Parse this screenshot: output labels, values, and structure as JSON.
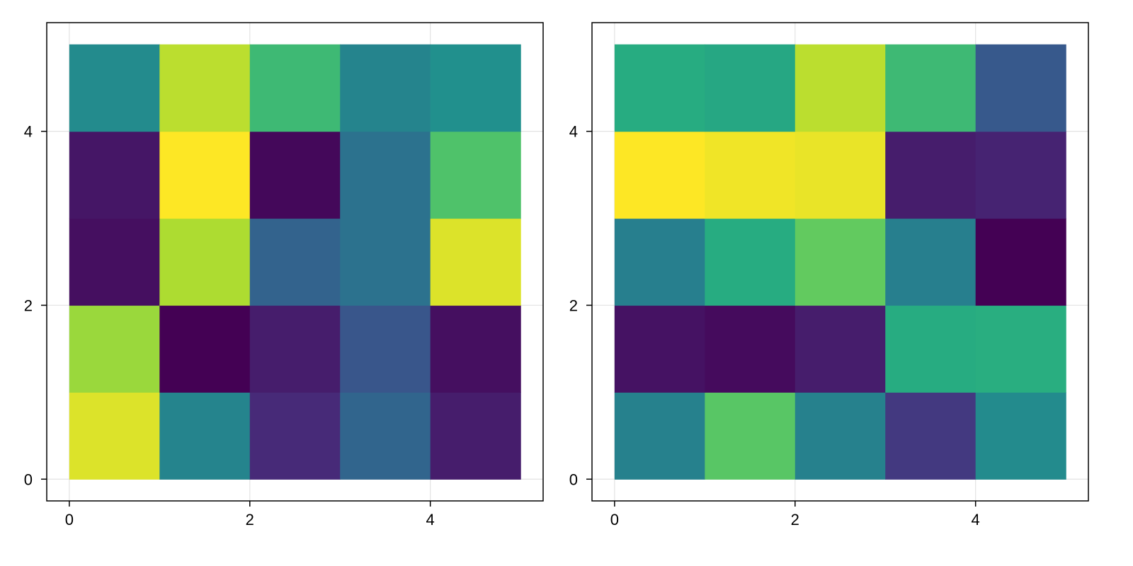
{
  "chart_data": [
    {
      "type": "heatmap",
      "title": "",
      "xlabel": "",
      "ylabel": "",
      "colormap": "viridis",
      "grid": true,
      "xlim": [
        -0.25,
        5.25
      ],
      "ylim": [
        -0.25,
        5.25
      ],
      "xticks": [
        0,
        2,
        4
      ],
      "yticks": [
        0,
        2,
        4
      ],
      "x_edges": [
        0,
        1,
        2,
        3,
        4,
        5
      ],
      "y_edges": [
        0,
        1,
        2,
        3,
        4,
        5
      ],
      "values": [
        [
          0.95,
          0.45,
          0.12,
          0.33,
          0.08
        ],
        [
          0.85,
          0.0,
          0.08,
          0.27,
          0.04
        ],
        [
          0.04,
          0.88,
          0.32,
          0.38,
          0.95
        ],
        [
          0.06,
          1.0,
          0.02,
          0.38,
          0.72
        ],
        [
          0.48,
          0.9,
          0.68,
          0.45,
          0.5
        ]
      ]
    },
    {
      "type": "heatmap",
      "title": "",
      "xlabel": "",
      "ylabel": "",
      "colormap": "viridis",
      "grid": true,
      "xlim": [
        -0.25,
        5.25
      ],
      "ylim": [
        -0.25,
        5.25
      ],
      "xticks": [
        0,
        2,
        4
      ],
      "yticks": [
        0,
        2,
        4
      ],
      "x_edges": [
        0,
        1,
        2,
        3,
        4,
        5
      ],
      "y_edges": [
        0,
        1,
        2,
        3,
        4,
        5
      ],
      "values": [
        [
          0.44,
          0.74,
          0.44,
          0.17,
          0.48
        ],
        [
          0.05,
          0.03,
          0.08,
          0.62,
          0.63
        ],
        [
          0.43,
          0.62,
          0.76,
          0.43,
          0.0
        ],
        [
          1.0,
          0.98,
          0.97,
          0.08,
          0.1
        ],
        [
          0.62,
          0.6,
          0.9,
          0.68,
          0.28
        ]
      ]
    }
  ]
}
